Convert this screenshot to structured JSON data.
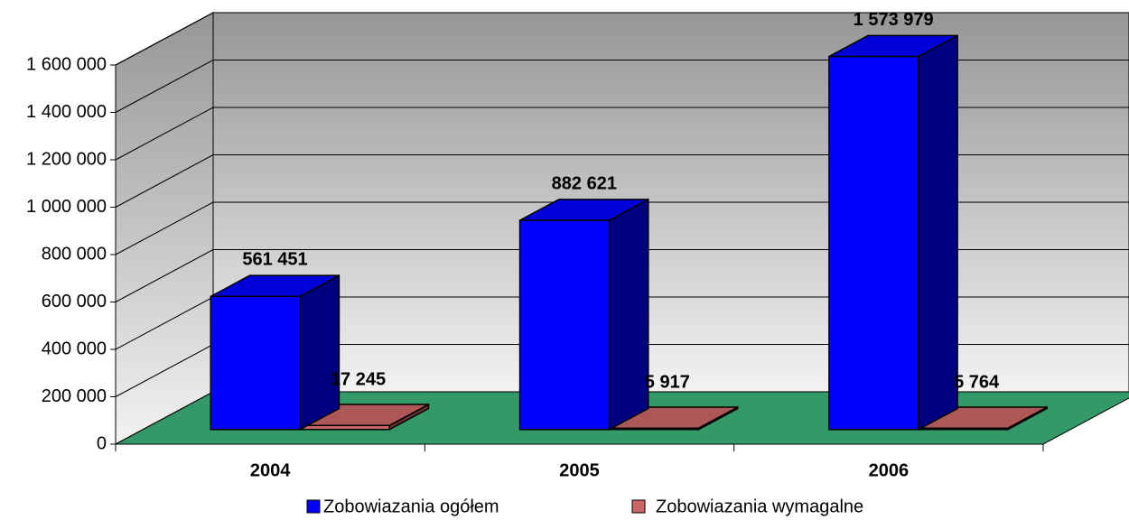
{
  "chart_data": {
    "type": "bar3d",
    "categories": [
      "2004",
      "2005",
      "2006"
    ],
    "series": [
      {
        "name": "Zobowiazania ogółem",
        "color": "#0000ff",
        "values": [
          561451,
          882621,
          1573979
        ],
        "value_labels": [
          "561 451",
          "882 621",
          "1 573 979"
        ]
      },
      {
        "name": "Zobowiazania wymagalne",
        "color": "#cc6666",
        "values": [
          17245,
          5917,
          5764
        ],
        "value_labels": [
          "17 245",
          "5 917",
          "5 764"
        ]
      }
    ],
    "ylim": [
      0,
      1600000
    ],
    "yticks": [
      0,
      {
        "value": 200000,
        "label": "200 000"
      },
      {
        "value": 400000,
        "label": "400 000"
      },
      {
        "value": 600000,
        "label": "600 000"
      },
      {
        "value": 800000,
        "label": "800 000"
      },
      {
        "value": 1000000,
        "label": "1 000 000"
      },
      {
        "value": 1200000,
        "label": "1 200 000"
      },
      {
        "value": 1400000,
        "label": "1 400 000"
      },
      {
        "value": 1600000,
        "label": "1 600 000"
      }
    ],
    "grid": true,
    "legend": "bottom"
  }
}
